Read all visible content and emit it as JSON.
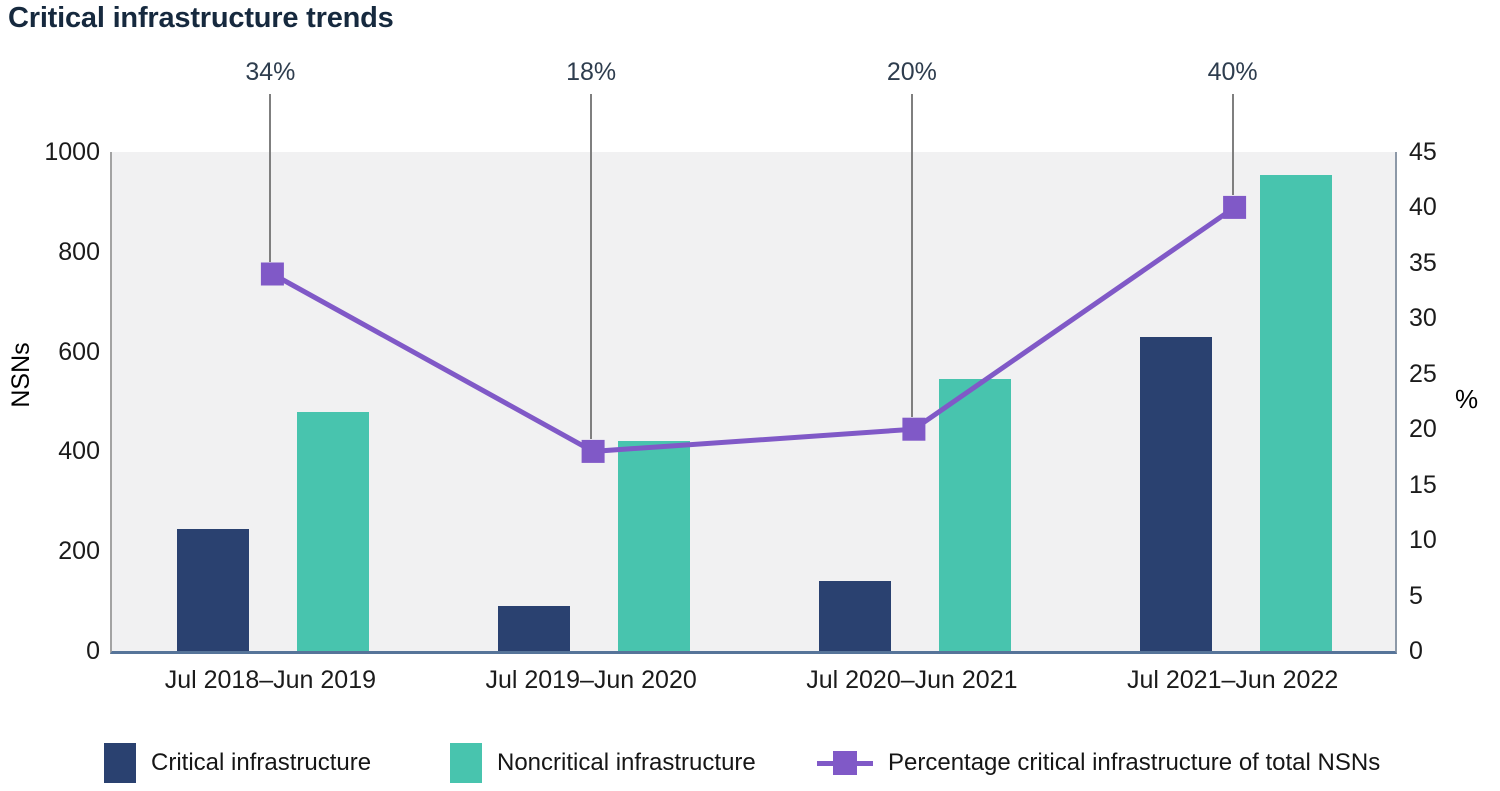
{
  "title": "Critical infrastructure trends",
  "colors": {
    "critical_bar": "#2a4170",
    "noncritical_bar": "#48c4ae",
    "percentage_line": "#8059c7",
    "title_text": "#16293e",
    "pct_label_text": "#2e3d4e",
    "tick_text": "#1b1b1b",
    "plot_background": "#f1f1f2",
    "baseline": "#567499",
    "leader_line": "#7f7f7f"
  },
  "chart_data": {
    "type": "combo-bar-line",
    "title": "Critical infrastructure trends",
    "categories": [
      "Jul 2018–Jun 2019",
      "Jul 2019–Jun 2020",
      "Jul 2020–Jun 2021",
      "Jul 2021–Jun 2022"
    ],
    "series": [
      {
        "name": "Critical infrastructure",
        "type": "bar",
        "axis": "left",
        "color": "#2a4170",
        "values": [
          245,
          90,
          140,
          630
        ]
      },
      {
        "name": "Noncritical infrastructure",
        "type": "bar",
        "axis": "left",
        "color": "#48c4ae",
        "values": [
          480,
          420,
          545,
          955
        ]
      },
      {
        "name": "Percentage critical infrastructure of total NSNs",
        "type": "line",
        "axis": "right",
        "color": "#8059c7",
        "marker": "square",
        "values": [
          34,
          18,
          20,
          40
        ],
        "point_labels": [
          "34%",
          "18%",
          "20%",
          "40%"
        ]
      }
    ],
    "left_axis": {
      "label": "NSNs",
      "min": 0,
      "max": 1000,
      "ticks": [
        0,
        200,
        400,
        600,
        800,
        1000
      ]
    },
    "right_axis": {
      "label": "%",
      "min": 0,
      "max": 45,
      "ticks": [
        0,
        5,
        10,
        15,
        20,
        25,
        30,
        35,
        40,
        45
      ]
    },
    "grid": false,
    "legend_position": "bottom"
  }
}
